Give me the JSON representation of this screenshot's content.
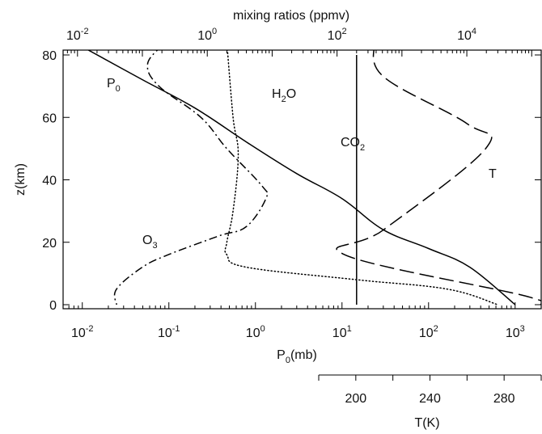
{
  "chart_data": {
    "type": "line",
    "y_axis": {
      "label": "z(km)",
      "range": [
        0,
        80
      ],
      "ticks": [
        "0",
        "20",
        "40",
        "60",
        "80"
      ]
    },
    "bottom_axis": {
      "label_main": "P",
      "label_sub": "0",
      "label_unit": "(mb)",
      "scale": "log",
      "range": [
        0.006,
        2000
      ],
      "tick_labels": [
        {
          "base": "10",
          "exp": "-2",
          "value": 0.01
        },
        {
          "base": "10",
          "exp": "-1",
          "value": 0.1
        },
        {
          "base": "10",
          "exp": "0",
          "value": 1
        },
        {
          "base": "10",
          "exp": "1",
          "value": 10
        },
        {
          "base": "10",
          "exp": "2",
          "value": 100
        },
        {
          "base": "10",
          "exp": "3",
          "value": 1000
        }
      ]
    },
    "top_axis": {
      "label": "mixing ratios (ppmv)",
      "scale": "log",
      "range": [
        0.006,
        140000
      ],
      "tick_labels": [
        {
          "base": "10",
          "exp": "-2",
          "value": 0.01
        },
        {
          "base": "10",
          "exp": "0",
          "value": 1
        },
        {
          "base": "10",
          "exp": "2",
          "value": 100
        },
        {
          "base": "10",
          "exp": "4",
          "value": 10000
        }
      ]
    },
    "temperature_axis": {
      "label": "T(K)",
      "range": [
        180,
        300
      ],
      "ticks": [
        "200",
        "240",
        "280"
      ],
      "tick_values": [
        200,
        240,
        280
      ],
      "minor_ticks": [
        180,
        220,
        260,
        300
      ]
    },
    "series": [
      {
        "name": "P",
        "name_sub": "0",
        "axis": "pressure",
        "style": "solid",
        "points": [
          [
            0.011,
            82
          ],
          [
            0.05,
            72
          ],
          [
            0.2,
            63
          ],
          [
            0.8,
            52
          ],
          [
            3,
            42
          ],
          [
            10,
            34
          ],
          [
            30,
            24
          ],
          [
            100,
            18
          ],
          [
            300,
            12
          ],
          [
            1000,
            0
          ]
        ]
      },
      {
        "name": "H",
        "name_sub": "2",
        "name_suffix": "O",
        "axis": "mixing",
        "style": "dotted",
        "points": [
          [
            2,
            84
          ],
          [
            2.5,
            60
          ],
          [
            3,
            48
          ],
          [
            2.5,
            30
          ],
          [
            2,
            20
          ],
          [
            2,
            16
          ],
          [
            4,
            12
          ],
          [
            200,
            8
          ],
          [
            5000,
            5
          ],
          [
            30000,
            0
          ]
        ]
      },
      {
        "name": "O",
        "name_sub": "3",
        "axis": "mixing",
        "style": "dashdot",
        "points": [
          [
            0.2,
            83
          ],
          [
            0.12,
            77
          ],
          [
            0.18,
            70
          ],
          [
            0.8,
            60
          ],
          [
            2,
            50
          ],
          [
            7,
            38
          ],
          [
            8,
            34
          ],
          [
            4,
            25
          ],
          [
            1.5,
            22
          ],
          [
            0.25,
            16
          ],
          [
            0.1,
            12
          ],
          [
            0.04,
            5
          ],
          [
            0.04,
            0
          ]
        ]
      },
      {
        "name": "CO",
        "name_sub": "2",
        "axis": "mixing",
        "style": "solid",
        "points": [
          [
            200,
            80
          ],
          [
            200,
            0
          ]
        ]
      },
      {
        "name": "T",
        "axis": "temperature",
        "style": "dashed",
        "points": [
          [
            210,
            84
          ],
          [
            215,
            73
          ],
          [
            260,
            58
          ],
          [
            270,
            50
          ],
          [
            215,
            24
          ],
          [
            194,
            16
          ],
          [
            290,
            3
          ],
          [
            300,
            0
          ]
        ]
      }
    ]
  }
}
